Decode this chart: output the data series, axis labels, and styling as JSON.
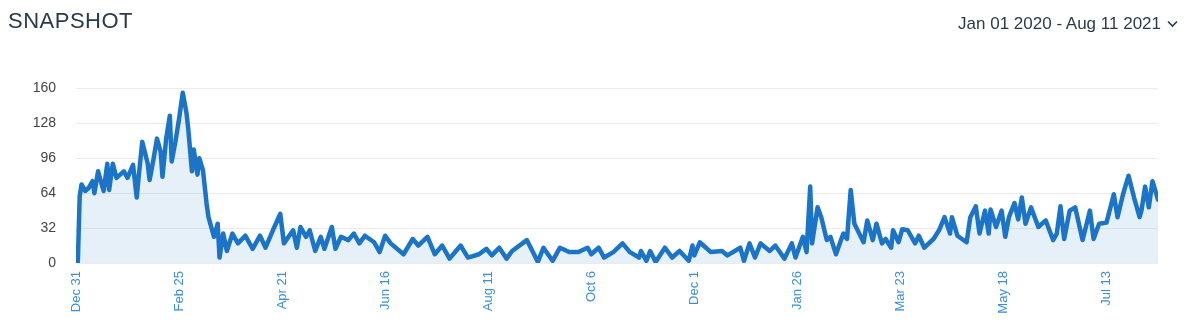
{
  "chart_data": {
    "type": "area",
    "title": "SNAPSHOT",
    "subtitle": "Jan 01 2020 - Aug 11 2021",
    "xlim": [
      "2019-12-31",
      "2021-08-10"
    ],
    "xticks": [
      {
        "value": "2019-12-31",
        "label": "Dec 31"
      },
      {
        "value": "2020-02-25",
        "label": "Feb 25"
      },
      {
        "value": "2020-04-21",
        "label": "Apr 21"
      },
      {
        "value": "2020-06-16",
        "label": "Jun 16"
      },
      {
        "value": "2020-08-11",
        "label": "Aug 11"
      },
      {
        "value": "2020-10-06",
        "label": "Oct 6"
      },
      {
        "value": "2020-12-01",
        "label": "Dec 1"
      },
      {
        "value": "2021-01-26",
        "label": "Jan 26"
      },
      {
        "value": "2021-03-23",
        "label": "Mar 23"
      },
      {
        "value": "2021-05-18",
        "label": "May 18"
      },
      {
        "value": "2021-07-13",
        "label": "Jul 13"
      }
    ],
    "ylim": [
      0,
      160
    ],
    "yticks": [
      0,
      32,
      64,
      96,
      128,
      160
    ],
    "grid": "y",
    "series": [
      {
        "color": "#1b74c8",
        "x": [
          "2020-01-01",
          "2020-01-02",
          "2020-01-03",
          "2020-01-05",
          "2020-01-07",
          "2020-01-09",
          "2020-01-10",
          "2020-01-12",
          "2020-01-15",
          "2020-01-17",
          "2020-01-18",
          "2020-01-20",
          "2020-01-22",
          "2020-01-26",
          "2020-01-28",
          "2020-01-31",
          "2020-02-02",
          "2020-02-03",
          "2020-02-05",
          "2020-02-08",
          "2020-02-09",
          "2020-02-11",
          "2020-02-13",
          "2020-02-15",
          "2020-02-16",
          "2020-02-18",
          "2020-02-20",
          "2020-02-21",
          "2020-02-23",
          "2020-02-25",
          "2020-02-27",
          "2020-02-29",
          "2020-03-01",
          "2020-03-03",
          "2020-03-04",
          "2020-03-06",
          "2020-03-07",
          "2020-03-09",
          "2020-03-11",
          "2020-03-12",
          "2020-03-15",
          "2020-03-17",
          "2020-03-18",
          "2020-03-20",
          "2020-03-22",
          "2020-03-25",
          "2020-03-28",
          "2020-04-01",
          "2020-04-05",
          "2020-04-09",
          "2020-04-12",
          "2020-04-16",
          "2020-04-20",
          "2020-04-22",
          "2020-04-27",
          "2020-04-29",
          "2020-05-01",
          "2020-05-04",
          "2020-05-06",
          "2020-05-09",
          "2020-05-12",
          "2020-05-14",
          "2020-05-18",
          "2020-05-20",
          "2020-05-23",
          "2020-05-27",
          "2020-05-30",
          "2020-06-02",
          "2020-06-05",
          "2020-06-10",
          "2020-06-13",
          "2020-06-16",
          "2020-06-19",
          "2020-06-26",
          "2020-07-01",
          "2020-07-04",
          "2020-07-09",
          "2020-07-13",
          "2020-07-17",
          "2020-07-21",
          "2020-07-27",
          "2020-07-31",
          "2020-08-06",
          "2020-08-10",
          "2020-08-13",
          "2020-08-17",
          "2020-08-21",
          "2020-08-24",
          "2020-09-01",
          "2020-09-07",
          "2020-09-10",
          "2020-09-15",
          "2020-09-19",
          "2020-09-24",
          "2020-09-29",
          "2020-10-04",
          "2020-10-06",
          "2020-10-10",
          "2020-10-13",
          "2020-10-18",
          "2020-10-23",
          "2020-10-27",
          "2020-11-01",
          "2020-11-02",
          "2020-11-05",
          "2020-11-07",
          "2020-11-10",
          "2020-11-15",
          "2020-11-19",
          "2020-11-23",
          "2020-11-28",
          "2020-11-30",
          "2020-12-01",
          "2020-12-04",
          "2020-12-10",
          "2020-12-16",
          "2020-12-19",
          "2020-12-26",
          "2020-12-28",
          "2020-12-31",
          "2021-01-03",
          "2021-01-06",
          "2021-01-11",
          "2021-01-14",
          "2021-01-19",
          "2021-01-23",
          "2021-01-25",
          "2021-01-29",
          "2021-01-31",
          "2021-02-02",
          "2021-02-03",
          "2021-02-06",
          "2021-02-08",
          "2021-02-11",
          "2021-02-13",
          "2021-02-16",
          "2021-02-20",
          "2021-02-22",
          "2021-02-24",
          "2021-02-26",
          "2021-03-03",
          "2021-03-05",
          "2021-03-08",
          "2021-03-10",
          "2021-03-13",
          "2021-03-15",
          "2021-03-18",
          "2021-03-19",
          "2021-03-22",
          "2021-03-24",
          "2021-03-27",
          "2021-03-31",
          "2021-04-02",
          "2021-04-05",
          "2021-04-10",
          "2021-04-13",
          "2021-04-16",
          "2021-04-19",
          "2021-04-20",
          "2021-04-23",
          "2021-04-28",
          "2021-04-30",
          "2021-05-03",
          "2021-05-05",
          "2021-05-08",
          "2021-05-10",
          "2021-05-11",
          "2021-05-14",
          "2021-05-17",
          "2021-05-19",
          "2021-05-21",
          "2021-05-24",
          "2021-05-26",
          "2021-05-28",
          "2021-05-30",
          "2021-06-02",
          "2021-06-04",
          "2021-06-06",
          "2021-06-10",
          "2021-06-14",
          "2021-06-16",
          "2021-06-18",
          "2021-06-20",
          "2021-06-23",
          "2021-06-26",
          "2021-06-30",
          "2021-07-04",
          "2021-07-06",
          "2021-07-09",
          "2021-07-13",
          "2021-07-17",
          "2021-07-19",
          "2021-07-22",
          "2021-07-25",
          "2021-07-28",
          "2021-07-31",
          "2021-08-01",
          "2021-08-03",
          "2021-08-05",
          "2021-08-07",
          "2021-08-10"
        ],
        "values": [
          1,
          61,
          72,
          66,
          69,
          75,
          64,
          84,
          66,
          91,
          67,
          91,
          78,
          84,
          78,
          90,
          60,
          78,
          111,
          91,
          76,
          94,
          114,
          102,
          79,
          114,
          135,
          93,
          111,
          132,
          156,
          138,
          123,
          84,
          104,
          81,
          96,
          85,
          54,
          42,
          24,
          36,
          5,
          27,
          11,
          27,
          18,
          25,
          13,
          25,
          14,
          30,
          45,
          18,
          30,
          14,
          33,
          24,
          30,
          11,
          24,
          13,
          33,
          13,
          24,
          21,
          27,
          18,
          25,
          19,
          10,
          25,
          18,
          8,
          22,
          16,
          24,
          8,
          16,
          4,
          16,
          5,
          8,
          13,
          7,
          14,
          4,
          11,
          21,
          1,
          14,
          2,
          14,
          10,
          10,
          14,
          8,
          14,
          5,
          10,
          18,
          10,
          5,
          11,
          2,
          11,
          1,
          14,
          5,
          11,
          2,
          16,
          7,
          19,
          10,
          11,
          7,
          14,
          2,
          18,
          5,
          18,
          11,
          16,
          4,
          18,
          5,
          24,
          10,
          70,
          18,
          51,
          42,
          21,
          24,
          8,
          27,
          22,
          67,
          36,
          19,
          39,
          21,
          36,
          18,
          22,
          14,
          30,
          19,
          31,
          30,
          18,
          25,
          14,
          22,
          30,
          42,
          27,
          42,
          25,
          19,
          42,
          52,
          27,
          48,
          27,
          49,
          33,
          48,
          24,
          42,
          55,
          40,
          60,
          36,
          51,
          42,
          33,
          39,
          21,
          27,
          52,
          22,
          48,
          51,
          21,
          48,
          22,
          36,
          37,
          63,
          42,
          63,
          80,
          60,
          42,
          48,
          70,
          51,
          75,
          58
        ]
      }
    ]
  }
}
